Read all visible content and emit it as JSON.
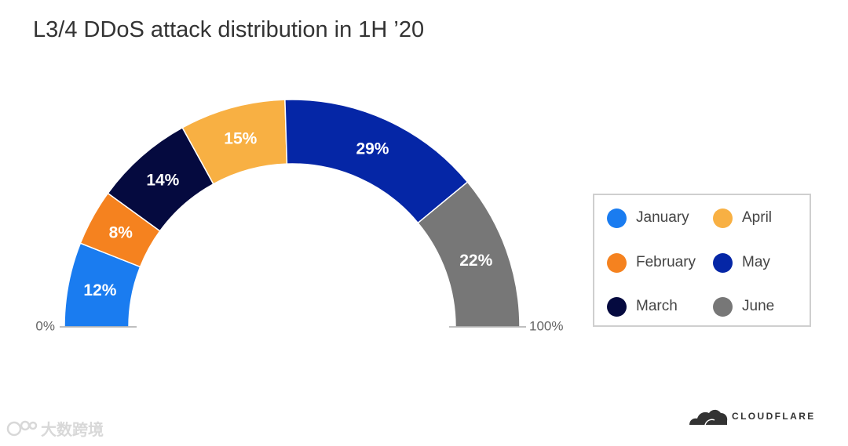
{
  "chart_data": {
    "type": "pie",
    "subtype": "half-donut",
    "title": "L3/4 DDoS attack distribution in 1H ’20",
    "categories": [
      "January",
      "February",
      "March",
      "April",
      "May",
      "June"
    ],
    "values": [
      12,
      8,
      14,
      15,
      29,
      22
    ],
    "data_labels": [
      "12%",
      "8%",
      "14%",
      "15%",
      "29%",
      "22%"
    ],
    "colors": [
      "#1a7cf0",
      "#f5821f",
      "#050a3f",
      "#f8b043",
      "#0526a6",
      "#777777"
    ],
    "scale_start_label": "0%",
    "scale_end_label": "100%",
    "legend": {
      "placement": "right",
      "columns": [
        [
          "January",
          "February",
          "March"
        ],
        [
          "April",
          "May",
          "June"
        ]
      ]
    },
    "grid": false
  },
  "branding": {
    "logo_text": "CLOUDFLARE",
    "watermark_text": "大数跨境"
  }
}
